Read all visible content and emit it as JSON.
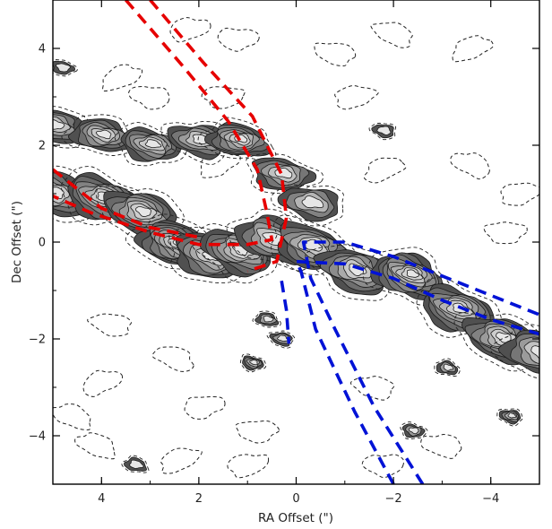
{
  "chart_data": {
    "type": "contour",
    "title": "",
    "xlabel": "RA Offset (\")",
    "ylabel": "Dec Offset (\")",
    "xlim": [
      5,
      -5
    ],
    "ylim": [
      -5,
      5
    ],
    "x_ticks": [
      4,
      2,
      0,
      -2,
      -4
    ],
    "y_ticks": [
      4,
      2,
      0,
      -2,
      -4
    ],
    "x_tick_labels": [
      "4",
      "2",
      "0",
      "−2",
      "−4"
    ],
    "y_tick_labels": [
      "4",
      "2",
      "0",
      "−2",
      "−4"
    ],
    "grid": false,
    "colormap": "greyscale filled contours",
    "emission_ridge": [
      {
        "x": 5.0,
        "y": 1.0,
        "level": 6
      },
      {
        "x": 4.0,
        "y": 0.9,
        "level": 7
      },
      {
        "x": 3.2,
        "y": 0.6,
        "level": 7
      },
      {
        "x": 2.5,
        "y": -0.05,
        "level": 9
      },
      {
        "x": 1.8,
        "y": -0.3,
        "level": 6
      },
      {
        "x": 1.2,
        "y": -0.2,
        "level": 7
      },
      {
        "x": 0.5,
        "y": 0.05,
        "level": 5
      },
      {
        "x": -0.3,
        "y": -0.1,
        "level": 6
      },
      {
        "x": -1.2,
        "y": -0.6,
        "level": 6
      },
      {
        "x": -2.3,
        "y": -0.7,
        "level": 9
      },
      {
        "x": -3.3,
        "y": -1.4,
        "level": 7
      },
      {
        "x": -4.2,
        "y": -2.0,
        "level": 7
      },
      {
        "x": -5.0,
        "y": -2.3,
        "level": 5
      }
    ],
    "emission_upper_arm": [
      {
        "x": 5.0,
        "y": 2.4,
        "level": 5
      },
      {
        "x": 4.0,
        "y": 2.2,
        "level": 6
      },
      {
        "x": 3.0,
        "y": 2.0,
        "level": 6
      },
      {
        "x": 2.0,
        "y": 2.1,
        "level": 5
      },
      {
        "x": 1.2,
        "y": 2.1,
        "level": 7
      },
      {
        "x": 0.3,
        "y": 1.4,
        "level": 5
      },
      {
        "x": -0.3,
        "y": 0.8,
        "level": 4
      }
    ],
    "clumps": [
      {
        "x": 0.9,
        "y": -2.5,
        "level": 4
      },
      {
        "x": 0.3,
        "y": -2.0,
        "level": 3
      },
      {
        "x": 0.6,
        "y": -1.6,
        "level": 3
      },
      {
        "x": -2.4,
        "y": -3.9,
        "level": 3
      },
      {
        "x": -4.4,
        "y": -3.6,
        "level": 4
      },
      {
        "x": 3.3,
        "y": -4.6,
        "level": 2
      },
      {
        "x": 4.8,
        "y": 3.6,
        "level": 2
      },
      {
        "x": -1.8,
        "y": 2.3,
        "level": 2
      },
      {
        "x": -3.1,
        "y": -2.6,
        "level": 3
      }
    ],
    "negative_contours": [
      {
        "x": 3.6,
        "y": 3.4
      },
      {
        "x": 2.2,
        "y": 4.4
      },
      {
        "x": 1.2,
        "y": 4.2
      },
      {
        "x": -0.8,
        "y": 3.9
      },
      {
        "x": -2.0,
        "y": 4.3
      },
      {
        "x": -3.6,
        "y": 4.0
      },
      {
        "x": -1.2,
        "y": 3.0
      },
      {
        "x": 1.5,
        "y": 3.0
      },
      {
        "x": 3.0,
        "y": 3.0
      },
      {
        "x": -3.6,
        "y": 1.6
      },
      {
        "x": -1.8,
        "y": 1.5
      },
      {
        "x": -4.6,
        "y": 1.0
      },
      {
        "x": -4.3,
        "y": 0.2
      },
      {
        "x": 3.8,
        "y": -1.7
      },
      {
        "x": 2.5,
        "y": -2.4
      },
      {
        "x": 4.0,
        "y": -2.9
      },
      {
        "x": 1.9,
        "y": -3.4
      },
      {
        "x": 0.8,
        "y": -3.9
      },
      {
        "x": -1.6,
        "y": -3.0
      },
      {
        "x": 4.1,
        "y": -4.2
      },
      {
        "x": 2.4,
        "y": -4.5
      },
      {
        "x": 1.0,
        "y": -4.6
      },
      {
        "x": -1.8,
        "y": -4.6
      },
      {
        "x": -3.0,
        "y": -4.2
      },
      {
        "x": 4.6,
        "y": -3.6
      },
      {
        "x": 1.6,
        "y": 1.6
      }
    ],
    "overlays": [
      {
        "name": "",
        "color": "#e60000",
        "style": "dashed",
        "lines": [
          [
            [
              3.5,
              5.0
            ],
            [
              2.3,
              3.6
            ],
            [
              1.4,
              2.5
            ],
            [
              0.8,
              1.5
            ],
            [
              0.6,
              0.6
            ],
            [
              0.5,
              0.05
            ],
            [
              1.0,
              -0.05
            ],
            [
              2.0,
              -0.05
            ],
            [
              3.0,
              0.2
            ],
            [
              4.2,
              0.6
            ],
            [
              5.0,
              0.95
            ]
          ],
          [
            [
              3.0,
              5.0
            ],
            [
              1.9,
              3.7
            ],
            [
              0.9,
              2.6
            ],
            [
              0.3,
              1.4
            ],
            [
              0.2,
              0.5
            ],
            [
              0.4,
              -0.4
            ],
            [
              1.0,
              -0.6
            ]
          ],
          [
            [
              5.0,
              1.5
            ],
            [
              4.0,
              0.7
            ],
            [
              3.0,
              0.3
            ],
            [
              2.0,
              0.1
            ]
          ]
        ]
      },
      {
        "name": "",
        "color": "#0012d6",
        "style": "dashed",
        "lines": [
          [
            [
              -2.0,
              -5.0
            ],
            [
              -1.2,
              -3.5
            ],
            [
              -0.4,
              -1.8
            ],
            [
              -0.1,
              -0.6
            ],
            [
              0.0,
              -0.4
            ],
            [
              -1.0,
              -0.45
            ],
            [
              -2.0,
              -0.75
            ],
            [
              -3.0,
              -1.2
            ],
            [
              -4.0,
              -1.6
            ],
            [
              -5.0,
              -1.9
            ]
          ],
          [
            [
              -2.6,
              -5.0
            ],
            [
              -1.6,
              -3.4
            ],
            [
              -0.8,
              -1.8
            ],
            [
              -0.3,
              -0.75
            ],
            [
              -0.15,
              0.0
            ],
            [
              -1.0,
              0.0
            ],
            [
              -2.0,
              -0.3
            ],
            [
              -3.0,
              -0.7
            ],
            [
              -4.0,
              -1.1
            ],
            [
              -5.0,
              -1.5
            ]
          ],
          [
            [
              0.3,
              -0.8
            ],
            [
              0.2,
              -1.4
            ],
            [
              0.15,
              -2.1
            ]
          ]
        ]
      }
    ]
  }
}
